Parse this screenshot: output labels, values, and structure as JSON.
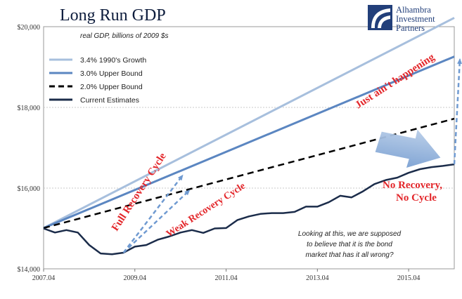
{
  "colors": {
    "series_1990": "#a7bfdd",
    "series_upper3": "#5b86c1",
    "series_upper2": "#000000",
    "series_current": "#1b2c4a",
    "annotation_red": "#e3262a",
    "arrow_blue": "#6f9ad1",
    "title": "#0d1c3c",
    "grid": "#c9c9c9",
    "logo_blue": "#223f7a"
  },
  "chart_data": {
    "type": "line",
    "title": "Long Run GDP",
    "subtitle": "real GDP, billions of 2009 $s",
    "xlabel": "",
    "ylabel": "",
    "xlim": [
      2007.25,
      2016.25
    ],
    "ylim": [
      14000,
      20000
    ],
    "x_ticks": [
      {
        "x": 2007.25,
        "label": "2007.04"
      },
      {
        "x": 2009.25,
        "label": "2009.04"
      },
      {
        "x": 2011.25,
        "label": "2011.04"
      },
      {
        "x": 2013.25,
        "label": "2013.04"
      },
      {
        "x": 2015.25,
        "label": "2015.04"
      }
    ],
    "y_ticks": [
      {
        "y": 14000,
        "label": "$14,000"
      },
      {
        "y": 16000,
        "label": "$16,000"
      },
      {
        "y": 18000,
        "label": "$18,000"
      },
      {
        "y": 20000,
        "label": "$20,000"
      }
    ],
    "grid_y": [
      16000,
      18000
    ],
    "legend_position": "top-left",
    "series": [
      {
        "name": "3.4% 1990's Growth",
        "style": "solid-light",
        "x": [
          2007.25,
          2016.25
        ],
        "y": [
          15010,
          20220
        ]
      },
      {
        "name": "3.0% Upper Bound",
        "style": "solid-mid",
        "x": [
          2007.25,
          2016.25
        ],
        "y": [
          15010,
          19260
        ]
      },
      {
        "name": "2.0% Upper Bound",
        "style": "dashed",
        "x": [
          2007.25,
          2016.25
        ],
        "y": [
          15010,
          17720
        ]
      },
      {
        "name": "Current Estimates",
        "style": "solid-dark",
        "x": [
          2007.25,
          2007.5,
          2007.75,
          2008.0,
          2008.25,
          2008.5,
          2008.75,
          2009.0,
          2009.25,
          2009.5,
          2009.75,
          2010.0,
          2010.25,
          2010.5,
          2010.75,
          2011.0,
          2011.25,
          2011.5,
          2011.75,
          2012.0,
          2012.25,
          2012.5,
          2012.75,
          2013.0,
          2013.25,
          2013.5,
          2013.75,
          2014.0,
          2014.25,
          2014.5,
          2014.75,
          2015.0,
          2015.25,
          2015.5,
          2015.75,
          2016.0,
          2016.25
        ],
        "y": [
          15000,
          14900,
          14960,
          14900,
          14590,
          14380,
          14360,
          14400,
          14550,
          14590,
          14720,
          14800,
          14900,
          14960,
          14890,
          15000,
          15010,
          15210,
          15300,
          15360,
          15380,
          15380,
          15410,
          15540,
          15540,
          15650,
          15810,
          15770,
          15920,
          16100,
          16200,
          16260,
          16380,
          16470,
          16520,
          16550,
          16590
        ]
      }
    ],
    "annotations": {
      "full_recovery": "Full Recovery Cycle",
      "weak_recovery": "Weak Recovery Cycle",
      "not_happening": "Just ain't happening",
      "no_recovery_line1": "No Recovery,",
      "no_recovery_line2": "No Cycle",
      "commentary": [
        "Looking at this, we are supposed",
        "to believe that it is the bond",
        "market that has it all wrong?"
      ]
    },
    "arrows": [
      {
        "name": "full-recovery-arrow",
        "from": [
          2009.0,
          14400
        ],
        "to": [
          2010.3,
          16320
        ]
      },
      {
        "name": "weak-recovery-arrow",
        "from": [
          2009.0,
          14400
        ],
        "to": [
          2010.45,
          15950
        ]
      },
      {
        "name": "post-2016-arrow",
        "from": [
          2016.25,
          16590
        ],
        "to": [
          2016.6,
          19200
        ]
      }
    ]
  },
  "logo": {
    "line1": "Alhambra",
    "line2": "Investment",
    "line3": "Partners"
  }
}
